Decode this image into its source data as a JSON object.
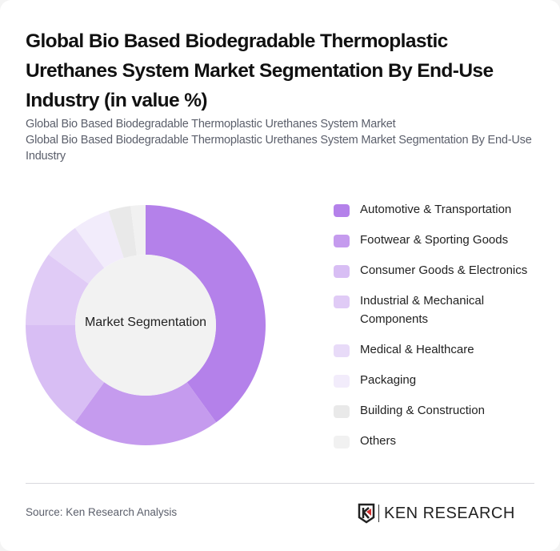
{
  "header": {
    "title": "Global Bio Based Biodegradable Thermoplastic Urethanes System Market Segmentation By End-Use Industry (in value %)",
    "subtitle_line1": "Global Bio Based Biodegradable Thermoplastic Urethanes System Market",
    "subtitle_line2": "Global Bio Based Biodegradable Thermoplastic Urethanes System Market Segmentation By End-Use Industry"
  },
  "chart_data": {
    "type": "pie",
    "subtype": "donut",
    "title": "Global Bio Based Biodegradable Thermoplastic Urethanes System Market Segmentation By End-Use Industry (in value %)",
    "center_label": "Market Segmentation",
    "categories": [
      "Automotive & Transportation",
      "Footwear & Sporting Goods",
      "Consumer Goods & Electronics",
      "Industrial & Mechanical Components",
      "Medical & Healthcare",
      "Packaging",
      "Building & Construction",
      "Others"
    ],
    "values": [
      40,
      20,
      15,
      10,
      5,
      5,
      3,
      2
    ],
    "colors": [
      "#b481ea",
      "#c59bee",
      "#d8bef4",
      "#e0cbf6",
      "#e8dbf8",
      "#f2ecfb",
      "#e9e9e9",
      "#f1f1f1"
    ],
    "legend_position": "right",
    "units": "value %"
  },
  "legend": {
    "items": [
      {
        "label": "Automotive & Transportation",
        "color": "#b481ea"
      },
      {
        "label": "Footwear & Sporting Goods",
        "color": "#c59bee"
      },
      {
        "label": "Consumer Goods & Electronics",
        "color": "#d8bef4"
      },
      {
        "label": "Industrial & Mechanical Components",
        "color": "#e0cbf6"
      },
      {
        "label": "Medical & Healthcare",
        "color": "#e8dbf8"
      },
      {
        "label": "Packaging",
        "color": "#f2ecfb"
      },
      {
        "label": "Building & Construction",
        "color": "#e9e9e9"
      },
      {
        "label": "Others",
        "color": "#f1f1f1"
      }
    ]
  },
  "footer": {
    "source": "Source: Ken Research Analysis",
    "logo_text": "KEN RESEARCH"
  }
}
